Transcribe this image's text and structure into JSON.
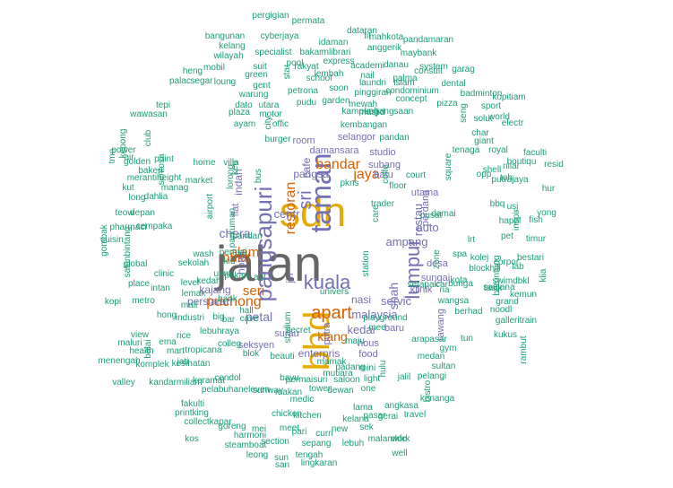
{
  "colors": {
    "teal": "#1b9e77",
    "gray": "#666666",
    "purple": "#7570b3",
    "orange": "#d95f02",
    "gold": "#e6ab02",
    "magenta": "#e7298a",
    "olive": "#66a61e",
    "tan": "#a6761d"
  },
  "words": [
    {
      "text": "jalan",
      "color": "gray"
    },
    {
      "text": "sdn",
      "color": "gold"
    },
    {
      "text": "bhd",
      "color": "gold"
    },
    {
      "text": "taman",
      "color": "purple"
    },
    {
      "text": "pangsapuri",
      "color": "purple"
    },
    {
      "text": "kuala",
      "color": "purple"
    },
    {
      "text": "lumpur",
      "color": "purple"
    },
    {
      "text": "apart",
      "color": "orange"
    },
    {
      "text": "sri",
      "color": "purple"
    },
    {
      "text": "bandar",
      "color": "orange"
    },
    {
      "text": "restoran",
      "color": "orange"
    },
    {
      "text": "jaya",
      "color": "orange"
    },
    {
      "text": "puchong",
      "color": "orange"
    },
    {
      "text": "alam",
      "color": "orange"
    },
    {
      "text": "bukit",
      "color": "orange"
    },
    {
      "text": "seri",
      "color": "orange"
    },
    {
      "text": "klang",
      "color": "orange"
    },
    {
      "text": "petal",
      "color": "purple"
    },
    {
      "text": "shah",
      "color": "purple"
    },
    {
      "text": "chera",
      "color": "purple"
    },
    {
      "text": "malaysia",
      "color": "purple"
    },
    {
      "text": "kedai",
      "color": "purple"
    },
    {
      "text": "servic",
      "color": "purple"
    },
    {
      "text": "centr",
      "color": "purple"
    },
    {
      "text": "ampang",
      "color": "purple"
    },
    {
      "text": "restau",
      "color": "purple"
    },
    {
      "text": "auto",
      "color": "purple"
    },
    {
      "text": "pangsa",
      "color": "purple"
    },
    {
      "text": "enterpris",
      "color": "purple"
    },
    {
      "text": "cafe",
      "color": "purple"
    },
    {
      "text": "nasi",
      "color": "purple"
    },
    {
      "text": "indah",
      "color": "purple"
    },
    {
      "text": "hotel",
      "color": "purple"
    },
    {
      "text": "persiaran",
      "color": "purple"
    },
    {
      "text": "kajang",
      "color": "purple"
    },
    {
      "text": "seksyen",
      "color": "purple"
    },
    {
      "text": "desa",
      "color": "purple"
    },
    {
      "text": "sungai",
      "color": "purple"
    },
    {
      "text": "klinik",
      "color": "purple"
    },
    {
      "text": "rawang",
      "color": "purple"
    },
    {
      "text": "baru",
      "color": "purple"
    },
    {
      "text": "hous",
      "color": "purple"
    },
    {
      "text": "food",
      "color": "purple"
    },
    {
      "text": "batu",
      "color": "purple"
    },
    {
      "text": "utama",
      "color": "purple"
    },
    {
      "text": "damansara",
      "color": "purple"
    },
    {
      "text": "studio",
      "color": "purple"
    },
    {
      "text": "subang",
      "color": "purple"
    },
    {
      "text": "selangor",
      "color": "purple"
    },
    {
      "text": "room",
      "color": "purple"
    },
    {
      "text": "perdana",
      "color": "purple"
    },
    {
      "text": "flat",
      "color": "purple"
    },
    {
      "text": "surau",
      "color": "purple"
    },
    {
      "text": "putra",
      "color": "purple"
    },
    {
      "text": "jin",
      "color": "purple"
    },
    {
      "text": "lebuhraya",
      "color": "teal"
    },
    {
      "text": "court",
      "color": "teal"
    },
    {
      "text": "permai",
      "color": "teal"
    },
    {
      "text": "pusat",
      "color": "teal"
    },
    {
      "text": "damai",
      "color": "teal"
    },
    {
      "text": "pandan",
      "color": "teal"
    },
    {
      "text": "kembangan",
      "color": "teal"
    },
    {
      "text": "bus",
      "color": "teal"
    },
    {
      "text": "parkuman",
      "color": "teal"
    },
    {
      "text": "villa",
      "color": "teal"
    },
    {
      "text": "lorong",
      "color": "teal"
    },
    {
      "text": "kebangsaan",
      "color": "teal"
    },
    {
      "text": "mewah",
      "color": "teal"
    },
    {
      "text": "masjid",
      "color": "teal"
    },
    {
      "text": "garden",
      "color": "teal"
    },
    {
      "text": "kampung",
      "color": "teal"
    },
    {
      "text": "condominium",
      "color": "teal"
    },
    {
      "text": "pinggiran",
      "color": "teal"
    },
    {
      "text": "laundri",
      "color": "teal"
    },
    {
      "text": "islam",
      "color": "teal"
    },
    {
      "text": "consult",
      "color": "teal"
    },
    {
      "text": "petrona",
      "color": "teal"
    },
    {
      "text": "school",
      "color": "teal"
    },
    {
      "text": "lembah",
      "color": "teal"
    },
    {
      "text": "express",
      "color": "teal"
    },
    {
      "text": "academi",
      "color": "teal"
    },
    {
      "text": "danau",
      "color": "teal"
    },
    {
      "text": "maybank",
      "color": "teal"
    },
    {
      "text": "mahkota",
      "color": "teal"
    },
    {
      "text": "pandamaran",
      "color": "teal"
    },
    {
      "text": "dataran",
      "color": "teal"
    },
    {
      "text": "permata",
      "color": "teal"
    },
    {
      "text": "pergigian",
      "color": "teal"
    },
    {
      "text": "bangunan",
      "color": "teal"
    },
    {
      "text": "cyberjaya",
      "color": "teal"
    },
    {
      "text": "kelang",
      "color": "teal"
    },
    {
      "text": "specialist",
      "color": "teal"
    },
    {
      "text": "wilayah",
      "color": "teal"
    },
    {
      "text": "bakar",
      "color": "teal"
    },
    {
      "text": "heng",
      "color": "teal"
    },
    {
      "text": "mobil",
      "color": "teal"
    },
    {
      "text": "suit",
      "color": "teal"
    },
    {
      "text": "gent",
      "color": "teal"
    },
    {
      "text": "palac",
      "color": "teal"
    },
    {
      "text": "segar",
      "color": "teal"
    },
    {
      "text": "loung",
      "color": "teal"
    },
    {
      "text": "warung",
      "color": "teal"
    },
    {
      "text": "tepi",
      "color": "teal"
    },
    {
      "text": "wawasan",
      "color": "teal"
    },
    {
      "text": "dato",
      "color": "teal"
    },
    {
      "text": "utara",
      "color": "teal"
    },
    {
      "text": "plaza",
      "color": "teal"
    },
    {
      "text": "motor",
      "color": "teal"
    },
    {
      "text": "ayam",
      "color": "teal"
    },
    {
      "text": "offic",
      "color": "teal"
    },
    {
      "text": "burger",
      "color": "teal"
    },
    {
      "text": "power",
      "color": "teal"
    },
    {
      "text": "golden",
      "color": "teal"
    },
    {
      "text": "point",
      "color": "teal"
    },
    {
      "text": "bakeri",
      "color": "teal"
    },
    {
      "text": "sentosa",
      "color": "teal"
    },
    {
      "text": "merantiheight",
      "color": "teal"
    },
    {
      "text": "manag",
      "color": "teal"
    },
    {
      "text": "market",
      "color": "teal"
    },
    {
      "text": "home",
      "color": "teal"
    },
    {
      "text": "kut",
      "color": "teal"
    },
    {
      "text": "long",
      "color": "teal"
    },
    {
      "text": "dahlia",
      "color": "teal"
    },
    {
      "text": "pharmaci",
      "color": "teal"
    },
    {
      "text": "teow",
      "color": "teal"
    },
    {
      "text": "depan",
      "color": "teal"
    },
    {
      "text": "cempaka",
      "color": "teal"
    },
    {
      "text": "cuisin",
      "color": "teal"
    },
    {
      "text": "global",
      "color": "teal"
    },
    {
      "text": "clinic",
      "color": "teal"
    },
    {
      "text": "place",
      "color": "teal"
    },
    {
      "text": "intan",
      "color": "teal"
    },
    {
      "text": "metro",
      "color": "teal"
    },
    {
      "text": "kopi",
      "color": "teal"
    },
    {
      "text": "view",
      "color": "teal"
    },
    {
      "text": "hong",
      "color": "teal"
    },
    {
      "text": "industri",
      "color": "teal"
    },
    {
      "text": "maluri",
      "color": "teal"
    },
    {
      "text": "health",
      "color": "teal"
    },
    {
      "text": "menengah",
      "color": "teal"
    },
    {
      "text": "komplek",
      "color": "teal"
    },
    {
      "text": "balai",
      "color": "teal"
    },
    {
      "text": "valley",
      "color": "teal"
    },
    {
      "text": "kandarmiliam",
      "color": "teal"
    },
    {
      "text": "kesihatan",
      "color": "teal"
    },
    {
      "text": "fakulti",
      "color": "teal"
    },
    {
      "text": "printking",
      "color": "teal"
    },
    {
      "text": "collectkapar",
      "color": "teal"
    },
    {
      "text": "goreng",
      "color": "teal"
    },
    {
      "text": "kos",
      "color": "teal"
    },
    {
      "text": "harmoni",
      "color": "teal"
    },
    {
      "text": "steamboat",
      "color": "teal"
    },
    {
      "text": "section",
      "color": "teal"
    },
    {
      "text": "leong",
      "color": "teal"
    },
    {
      "text": "sun",
      "color": "teal"
    },
    {
      "text": "san",
      "color": "teal"
    },
    {
      "text": "tengah",
      "color": "teal"
    },
    {
      "text": "sepang",
      "color": "teal"
    },
    {
      "text": "lingkaran",
      "color": "teal"
    },
    {
      "text": "lebuh",
      "color": "teal"
    },
    {
      "text": "malamkfc",
      "color": "teal"
    },
    {
      "text": "work",
      "color": "teal"
    },
    {
      "text": "well",
      "color": "teal"
    },
    {
      "text": "angkasa",
      "color": "teal"
    },
    {
      "text": "kenanga",
      "color": "teal"
    },
    {
      "text": "travel",
      "color": "teal"
    },
    {
      "text": "pelangi",
      "color": "teal"
    },
    {
      "text": "sultan",
      "color": "teal"
    },
    {
      "text": "jalil",
      "color": "teal"
    },
    {
      "text": "gym",
      "color": "teal"
    },
    {
      "text": "medan",
      "color": "teal"
    },
    {
      "text": "wangsa",
      "color": "teal"
    },
    {
      "text": "berhad",
      "color": "teal"
    },
    {
      "text": "saujana",
      "color": "teal"
    },
    {
      "text": "kemun",
      "color": "teal"
    },
    {
      "text": "grand",
      "color": "teal"
    },
    {
      "text": "rambut",
      "color": "teal"
    },
    {
      "text": "kukus",
      "color": "teal"
    },
    {
      "text": "noodl",
      "color": "teal"
    },
    {
      "text": "galleritrain",
      "color": "teal"
    },
    {
      "text": "swimdbkl",
      "color": "teal"
    },
    {
      "text": "beruntung",
      "color": "teal"
    },
    {
      "text": "playground",
      "color": "teal"
    },
    {
      "text": "ria",
      "color": "teal"
    },
    {
      "text": "tasik",
      "color": "teal"
    },
    {
      "text": "bunga",
      "color": "teal"
    },
    {
      "text": "corpor",
      "color": "teal"
    },
    {
      "text": "lab",
      "color": "teal"
    },
    {
      "text": "fish",
      "color": "teal"
    },
    {
      "text": "klia",
      "color": "teal"
    },
    {
      "text": "timur",
      "color": "teal"
    },
    {
      "text": "bestari",
      "color": "teal"
    },
    {
      "text": "yong",
      "color": "teal"
    },
    {
      "text": "hur",
      "color": "teal"
    },
    {
      "text": "opp",
      "color": "teal"
    },
    {
      "text": "happi",
      "color": "teal"
    },
    {
      "text": "putrajaya",
      "color": "teal"
    },
    {
      "text": "nilai",
      "color": "teal"
    },
    {
      "text": "shell",
      "color": "teal"
    },
    {
      "text": "boutiqu",
      "color": "teal"
    },
    {
      "text": "resid",
      "color": "teal"
    },
    {
      "text": "faculti",
      "color": "teal"
    },
    {
      "text": "royal",
      "color": "teal"
    },
    {
      "text": "giant",
      "color": "teal"
    },
    {
      "text": "char",
      "color": "teal"
    },
    {
      "text": "solut",
      "color": "teal"
    },
    {
      "text": "world",
      "color": "teal"
    },
    {
      "text": "sport",
      "color": "teal"
    },
    {
      "text": "pizza",
      "color": "teal"
    },
    {
      "text": "dental",
      "color": "teal"
    },
    {
      "text": "badminton",
      "color": "teal"
    },
    {
      "text": "kopitiam",
      "color": "teal"
    },
    {
      "text": "garag",
      "color": "teal"
    },
    {
      "text": "electr",
      "color": "teal"
    },
    {
      "text": "system",
      "color": "teal"
    },
    {
      "text": "concept",
      "color": "teal"
    },
    {
      "text": "palma",
      "color": "teal"
    },
    {
      "text": "nail",
      "color": "teal"
    },
    {
      "text": "anggerik",
      "color": "teal"
    },
    {
      "text": "fit",
      "color": "teal"
    },
    {
      "text": "mlibrari",
      "color": "teal"
    },
    {
      "text": "idaman",
      "color": "teal"
    },
    {
      "text": "soon",
      "color": "teal"
    },
    {
      "text": "pudu",
      "color": "teal"
    },
    {
      "text": "green",
      "color": "teal"
    },
    {
      "text": "rakyat",
      "color": "teal"
    },
    {
      "text": "pool",
      "color": "teal"
    },
    {
      "text": "star",
      "color": "teal"
    },
    {
      "text": "rice",
      "color": "teal"
    },
    {
      "text": "ema",
      "color": "teal"
    },
    {
      "text": "big",
      "color": "teal"
    },
    {
      "text": "tropicana",
      "color": "teal"
    },
    {
      "text": "mart",
      "color": "teal"
    },
    {
      "text": "jati",
      "color": "teal"
    },
    {
      "text": "colleg",
      "color": "teal"
    },
    {
      "text": "keramat",
      "color": "teal"
    },
    {
      "text": "pelabuhaneleven",
      "color": "teal"
    },
    {
      "text": "cendol",
      "color": "teal"
    },
    {
      "text": "makan",
      "color": "teal"
    },
    {
      "text": "sunway",
      "color": "teal"
    },
    {
      "text": "bayu",
      "color": "teal"
    },
    {
      "text": "medic",
      "color": "teal"
    },
    {
      "text": "chicken",
      "color": "teal"
    },
    {
      "text": "kitchen",
      "color": "teal"
    },
    {
      "text": "dewan",
      "color": "teal"
    },
    {
      "text": "tower",
      "color": "teal"
    },
    {
      "text": "permaisuri",
      "color": "teal"
    },
    {
      "text": "mutiara",
      "color": "teal"
    },
    {
      "text": "mamak",
      "color": "teal"
    },
    {
      "text": "padang",
      "color": "teal"
    },
    {
      "text": "mini",
      "color": "teal"
    },
    {
      "text": "light",
      "color": "teal"
    },
    {
      "text": "saloon",
      "color": "teal"
    },
    {
      "text": "beauti",
      "color": "teal"
    },
    {
      "text": "blok",
      "color": "teal"
    },
    {
      "text": "bar",
      "color": "teal"
    },
    {
      "text": "cave",
      "color": "teal"
    },
    {
      "text": "bank",
      "color": "teal"
    },
    {
      "text": "lemak",
      "color": "teal"
    },
    {
      "text": "level",
      "color": "teal"
    },
    {
      "text": "sekolah",
      "color": "teal"
    },
    {
      "text": "wash",
      "color": "teal"
    },
    {
      "text": "apt",
      "color": "teal"
    },
    {
      "text": "univers",
      "color": "teal"
    },
    {
      "text": "maju",
      "color": "teal"
    },
    {
      "text": "mee",
      "color": "teal"
    },
    {
      "text": "station",
      "color": "teal"
    },
    {
      "text": "setapak",
      "color": "teal"
    },
    {
      "text": "arapasar",
      "color": "teal"
    },
    {
      "text": "tun",
      "color": "teal"
    },
    {
      "text": "car",
      "color": "teal"
    },
    {
      "text": "kota",
      "color": "teal"
    },
    {
      "text": "blockhill",
      "color": "teal"
    },
    {
      "text": "lrt",
      "color": "teal"
    },
    {
      "text": "kolej",
      "color": "teal"
    },
    {
      "text": "spa",
      "color": "teal"
    },
    {
      "text": "hulu",
      "color": "teal"
    },
    {
      "text": "one",
      "color": "teal"
    },
    {
      "text": "lama",
      "color": "teal"
    },
    {
      "text": "pasar",
      "color": "teal"
    },
    {
      "text": "gerai",
      "color": "teal"
    },
    {
      "text": "sek",
      "color": "teal"
    },
    {
      "text": "kelana",
      "color": "teal"
    },
    {
      "text": "new",
      "color": "teal"
    },
    {
      "text": "pari",
      "color": "teal"
    },
    {
      "text": "curri",
      "color": "teal"
    },
    {
      "text": "meet",
      "color": "teal"
    },
    {
      "text": "mei",
      "color": "teal"
    },
    {
      "text": "ukm",
      "color": "teal"
    },
    {
      "text": "kedah",
      "color": "teal"
    },
    {
      "text": "pekan",
      "color": "teal"
    },
    {
      "text": "kid",
      "color": "teal"
    },
    {
      "text": "hall",
      "color": "teal"
    },
    {
      "text": "mall",
      "color": "teal"
    },
    {
      "text": "pandan",
      "color": "teal"
    },
    {
      "text": "coffe",
      "color": "teal"
    },
    {
      "text": "trader",
      "color": "teal"
    },
    {
      "text": "floor",
      "color": "teal"
    },
    {
      "text": "care",
      "color": "teal"
    },
    {
      "text": "pkns",
      "color": "teal"
    },
    {
      "text": "kee",
      "color": "teal"
    },
    {
      "text": "airport",
      "color": "teal"
    },
    {
      "text": "city",
      "color": "teal"
    },
    {
      "text": "club",
      "color": "teal"
    },
    {
      "text": "tmn",
      "color": "teal"
    },
    {
      "text": "air",
      "color": "teal"
    },
    {
      "text": "kepong",
      "color": "teal"
    },
    {
      "text": "gombak",
      "color": "teal"
    },
    {
      "text": "salonbintang",
      "color": "teal"
    },
    {
      "text": "stadium",
      "color": "teal"
    },
    {
      "text": "secret",
      "color": "teal"
    },
    {
      "text": "zone",
      "color": "teal"
    },
    {
      "text": "pet",
      "color": "teal"
    },
    {
      "text": "toh",
      "color": "teal"
    },
    {
      "text": "bbq",
      "color": "teal"
    },
    {
      "text": "usj",
      "color": "teal"
    },
    {
      "text": "seng",
      "color": "teal"
    },
    {
      "text": "tenaga",
      "color": "teal"
    },
    {
      "text": "square",
      "color": "teal"
    },
    {
      "text": "inspir",
      "color": "teal"
    },
    {
      "text": "bistro",
      "color": "teal"
    },
    {
      "text": "estat",
      "color": "teal"
    },
    {
      "text": "mydin",
      "color": "teal"
    },
    {
      "text": "impian",
      "color": "teal"
    },
    {
      "text": "perak",
      "color": "teal"
    },
    {
      "text": "kinrara",
      "color": "teal"
    },
    {
      "text": "batik",
      "color": "teal"
    },
    {
      "text": "manis",
      "color": "teal"
    },
    {
      "text": "gerai",
      "color": "teal"
    }
  ]
}
